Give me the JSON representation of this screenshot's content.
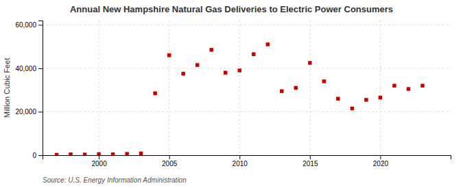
{
  "chart_data": {
    "type": "scatter",
    "title": "Annual New Hampshire Natural Gas Deliveries to Electric Power Consumers",
    "ylabel": "Million Cubic Feet",
    "source": "Source: U.S. Energy Information Administration",
    "color": "#cc0000",
    "marker": "square",
    "grid": true,
    "x": [
      1997,
      1998,
      1999,
      2000,
      2001,
      2002,
      2003,
      2004,
      2005,
      2006,
      2007,
      2008,
      2009,
      2010,
      2011,
      2012,
      2013,
      2014,
      2015,
      2016,
      2017,
      2018,
      2019,
      2020,
      2021,
      2022,
      2023
    ],
    "values": [
      200,
      400,
      300,
      500,
      400,
      600,
      800,
      28500,
      46000,
      37500,
      41500,
      48500,
      38000,
      39000,
      46500,
      51000,
      29500,
      31000,
      42500,
      34000,
      26000,
      21500,
      25500,
      26500,
      32000,
      30500,
      32000
    ],
    "xlim": [
      1996,
      2025
    ],
    "xticks": [
      2000,
      2005,
      2010,
      2015,
      2020
    ],
    "ylim": [
      0,
      62000
    ],
    "yticks": [
      0,
      {
        "value": 20000,
        "label": "20,000"
      },
      {
        "value": 40000,
        "label": "40,000"
      },
      {
        "value": 60000,
        "label": "60,000"
      }
    ]
  }
}
